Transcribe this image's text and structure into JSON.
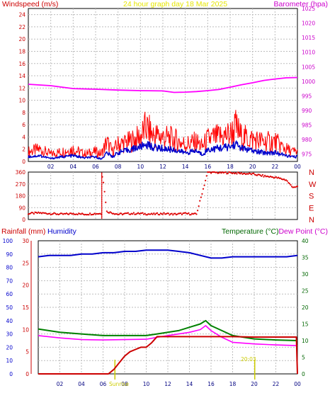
{
  "header": {
    "windspeed_label": "Windspeed (m/s)",
    "title": "24 hour graph day   18 Mar 2025",
    "barometer_label": "Barometer (hpa)"
  },
  "lower_header": {
    "rainfall_label": "Rainfall (mm)",
    "humidity_label": "Humidity",
    "temperature_label": "Temperature (°C)",
    "dewpoint_label": "Dew Point (°C)"
  },
  "annotations": {
    "sunrise": "Sunrise",
    "sunset": "20:03"
  },
  "colors": {
    "windspeed": "#ff0000",
    "windspeed_avg": "#0000cc",
    "barometer": "#ff00ff",
    "direction": "#dd0000",
    "rainfall": "#cc0000",
    "humidity": "#0000cc",
    "temperature": "#008000",
    "dewpoint": "#ff00ff",
    "marker": "#cccc00"
  },
  "chart_data": [
    {
      "type": "line",
      "title": "24 hour graph day   18 Mar 2025",
      "xlabel": "",
      "ylabel": "Windspeed (m/s)",
      "ylabel_right": "Barometer (hpa)",
      "x_ticks": [
        "02",
        "04",
        "06",
        "08",
        "10",
        "12",
        "14",
        "16",
        "18",
        "20",
        "22",
        "00"
      ],
      "ylim": [
        0,
        25
      ],
      "y_ticks": [
        0,
        2,
        4,
        6,
        8,
        10,
        12,
        14,
        16,
        18,
        20,
        22,
        24
      ],
      "y2lim": [
        972.5,
        1025
      ],
      "y2_ticks": [
        975,
        980,
        985,
        990,
        995,
        1000,
        1005,
        1010,
        1015,
        1020,
        1025
      ],
      "grid": true,
      "series": [
        {
          "name": "Windspeed (m/s)",
          "axis": "left",
          "x": [
            0,
            1,
            2,
            3,
            4,
            5,
            6,
            6.5,
            7,
            7.5,
            8,
            9,
            10,
            10.5,
            11,
            12,
            13,
            14,
            15,
            15.5,
            16,
            17,
            18,
            18.5,
            19,
            20,
            21,
            22,
            23,
            23.5,
            24
          ],
          "y": [
            2,
            2.5,
            1.5,
            2,
            2.5,
            1.5,
            2,
            1.5,
            4,
            2,
            3.5,
            4,
            5,
            7,
            5.5,
            5,
            4.5,
            3.5,
            4,
            3,
            4.5,
            5,
            5.5,
            7,
            5,
            4.5,
            4,
            4,
            2.5,
            2,
            2
          ]
        },
        {
          "name": "Average windspeed",
          "axis": "left",
          "x": [
            0,
            1,
            2,
            3,
            4,
            5,
            6,
            6.5,
            7,
            7.5,
            8,
            9,
            10,
            10.5,
            11,
            12,
            13,
            14,
            15,
            15.5,
            16,
            17,
            18,
            18.5,
            19,
            20,
            21,
            22,
            23,
            23.5,
            24
          ],
          "y": [
            0.8,
            1,
            0.5,
            0.8,
            1,
            0.6,
            0.8,
            0.4,
            1.5,
            0.8,
            1.5,
            2,
            2.5,
            3,
            2.5,
            2.2,
            2,
            1.5,
            1.8,
            1.2,
            2,
            2.3,
            2.5,
            3,
            2.3,
            1.8,
            1.5,
            1.5,
            1,
            0.8,
            0.8
          ]
        },
        {
          "name": "Barometer (hpa)",
          "axis": "right",
          "x": [
            0,
            2,
            4,
            6,
            8,
            10,
            12,
            13,
            14,
            15,
            16,
            17,
            18,
            19,
            20,
            21,
            22,
            23,
            24
          ],
          "y": [
            999,
            998.5,
            997.5,
            997.3,
            997,
            996.8,
            996.7,
            996.2,
            996.3,
            996.5,
            996.8,
            997.2,
            998,
            998.8,
            999.5,
            1000.3,
            1000.8,
            1001.2,
            1001.3
          ]
        }
      ]
    },
    {
      "type": "scatter",
      "ylabel_right": [
        "N",
        "W",
        "S",
        "E",
        "N"
      ],
      "ylim": [
        0,
        360
      ],
      "y_ticks": [
        0,
        90,
        180,
        270,
        360
      ],
      "grid": true,
      "series": [
        {
          "name": "Wind direction",
          "x": [
            0,
            1,
            2,
            3,
            4,
            5,
            6,
            6.5,
            6.6,
            7,
            8,
            9,
            10,
            11,
            12,
            13,
            14,
            15,
            16,
            17,
            18,
            19,
            20,
            21,
            22,
            23,
            23.5,
            24
          ],
          "y": [
            45,
            50,
            45,
            40,
            45,
            40,
            45,
            45,
            360,
            60,
            40,
            45,
            45,
            40,
            45,
            40,
            45,
            40,
            360,
            355,
            355,
            350,
            345,
            330,
            320,
            300,
            250,
            245
          ]
        }
      ]
    },
    {
      "type": "line",
      "ylabel": "Rainfall (mm)",
      "ylabel_2": "Humidity",
      "ylabel_right": "Temperature (°C)",
      "ylabel_right_2": "Dew Point (°C)",
      "x_ticks": [
        "02",
        "04",
        "06",
        "08",
        "10",
        "12",
        "14",
        "16",
        "18",
        "20",
        "22",
        "00"
      ],
      "ylim_rain": [
        0,
        30
      ],
      "y_ticks_rain": [
        0,
        5,
        10,
        15,
        20,
        25,
        30
      ],
      "ylim_humidity": [
        0,
        100
      ],
      "y_ticks_humidity": [
        0,
        10,
        20,
        30,
        40,
        50,
        60,
        70,
        80,
        90,
        100
      ],
      "ylim_temp": [
        0,
        40
      ],
      "y_ticks_temp": [
        0,
        5,
        10,
        15,
        20,
        25,
        30,
        35,
        40
      ],
      "grid": true,
      "series": [
        {
          "name": "Humidity",
          "axis": "humidity",
          "x": [
            0,
            1,
            2,
            3,
            4,
            5,
            6,
            7,
            8,
            9,
            10,
            11,
            12,
            13,
            14,
            15,
            16,
            17,
            18,
            19,
            20,
            21,
            22,
            23,
            24
          ],
          "y": [
            88,
            89,
            89,
            89,
            90,
            90,
            91,
            91,
            92,
            92,
            93,
            93,
            93,
            92,
            91,
            89,
            87,
            87,
            88,
            88,
            88,
            88,
            88,
            88,
            89
          ]
        },
        {
          "name": "Temperature (°C)",
          "axis": "temp",
          "x": [
            0,
            2,
            4,
            6,
            8,
            10,
            11,
            12,
            13,
            14,
            15,
            15.5,
            16,
            17,
            18,
            20,
            22,
            24
          ],
          "y": [
            13.5,
            12.5,
            12,
            11.5,
            11.5,
            11.5,
            12,
            12.5,
            13,
            14,
            15,
            16,
            14.5,
            13,
            11.5,
            10.5,
            10.2,
            10
          ]
        },
        {
          "name": "Dew Point (°C)",
          "axis": "temp",
          "x": [
            0,
            2,
            4,
            6,
            8,
            10,
            11,
            12,
            13,
            14,
            15,
            15.5,
            16,
            17,
            18,
            20,
            22,
            24
          ],
          "y": [
            11.5,
            10.8,
            10.3,
            10.2,
            10.3,
            10.4,
            11,
            11.5,
            12,
            12.5,
            13.3,
            14.5,
            13,
            11,
            9.5,
            9,
            8.7,
            8.5
          ]
        },
        {
          "name": "Rainfall (mm)",
          "axis": "rain",
          "x": [
            0,
            6.5,
            7,
            7.5,
            8,
            8.5,
            9,
            9.5,
            10,
            10.5,
            11,
            12,
            14,
            16,
            18,
            20,
            22,
            23.9,
            24
          ],
          "y": [
            0,
            0,
            1,
            2.5,
            4,
            5,
            5.5,
            6,
            6,
            7,
            8.4,
            8.4,
            8.4,
            8.4,
            8.4,
            8.3,
            8.3,
            8.3,
            0
          ]
        }
      ]
    }
  ]
}
